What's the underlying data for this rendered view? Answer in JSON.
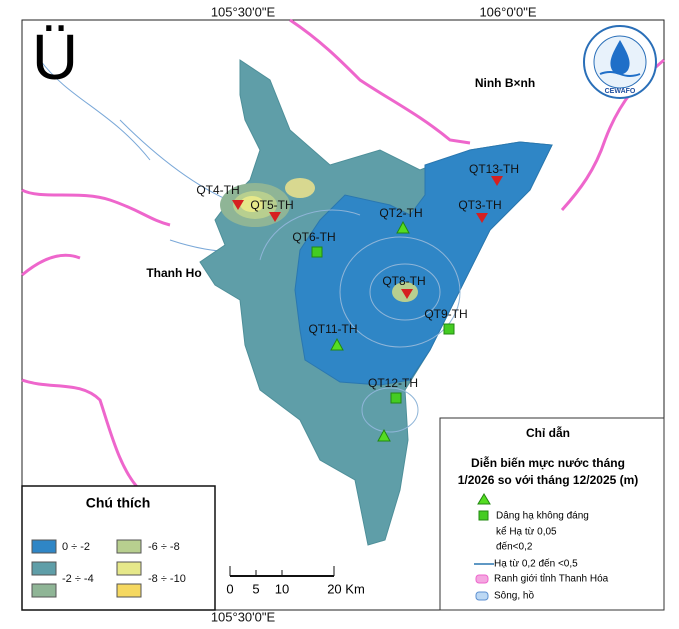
{
  "north_arrow": "Ü",
  "logo": "CEWAFO",
  "coordinates": {
    "top": [
      "105°30'0\"E",
      "106°0'0\"E"
    ],
    "bottom": "105°30'0\"E"
  },
  "places": [
    "Ninh B×nh",
    "Thanh Ho"
  ],
  "stations": [
    "QT4-TH",
    "QT5-TH",
    "QT6-TH",
    "QT2-TH",
    "QT13-TH",
    "QT3-TH",
    "QT8-TH",
    "QT9-TH",
    "QT11-TH",
    "QT12-TH"
  ],
  "legend_left": {
    "title": "Chú thích",
    "items": [
      "0 ÷ -2",
      "-2 ÷ -4",
      "-6 ÷ -8",
      "-8 ÷ -10"
    ]
  },
  "scale_bar": {
    "labels": [
      "0",
      "5",
      "10",
      "20 Km"
    ]
  },
  "legend_right": {
    "title": "Chỉ dẫn",
    "subtitle": [
      "Diễn biến mực nước tháng",
      "1/2026 so với tháng 12/2025 (m)"
    ],
    "items": [
      [
        "Dâng hạ không đáng",
        "kể  Hạ từ 0,05",
        "đến<0,2"
      ],
      [
        "Hạ từ 0,2 đến <0,5"
      ],
      [
        "Ranh giới tỉnh Thanh Hóa"
      ],
      [
        "Sông, hồ"
      ]
    ]
  }
}
